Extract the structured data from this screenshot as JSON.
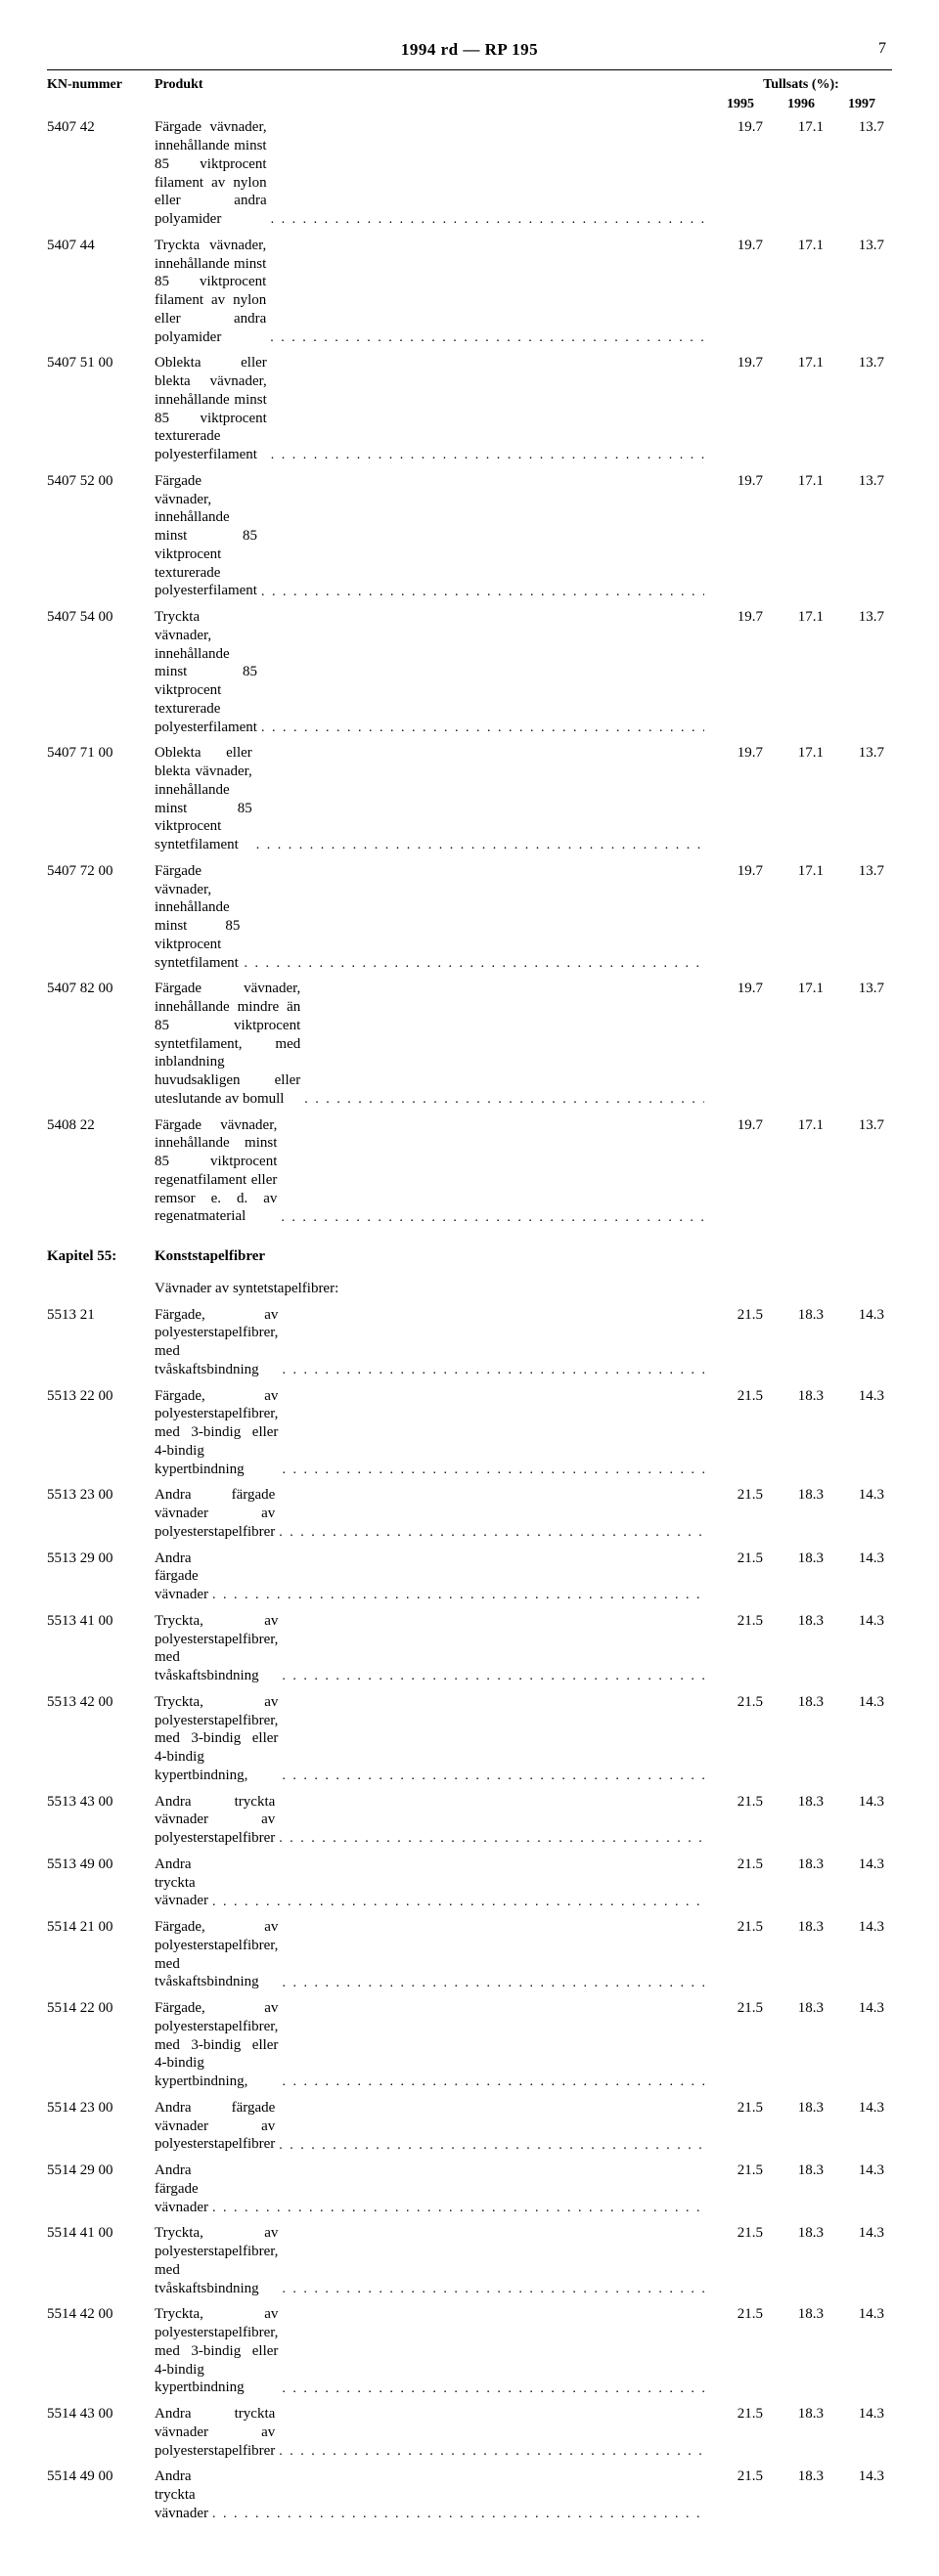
{
  "header_text": "1994 rd — RP 195",
  "page_number": "7",
  "columns": {
    "kn": "KN-nummer",
    "produkt": "Produkt",
    "tullsats": "Tullsats (%):",
    "y1995": "1995",
    "y1996": "1996",
    "y1997": "1997"
  },
  "rows": [
    {
      "kn": "5407 42",
      "produkt": "Färgade vävnader, innehållande minst 85 viktprocent filament av nylon eller andra polyamider",
      "y1995": "19.7",
      "y1996": "17.1",
      "y1997": "13.7"
    },
    {
      "kn": "5407 44",
      "produkt": "Tryckta vävnader, innehållande minst 85 viktprocent filament av nylon eller andra polyamider",
      "y1995": "19.7",
      "y1996": "17.1",
      "y1997": "13.7"
    },
    {
      "kn": "5407 51 00",
      "produkt": "Oblekta eller blekta vävnader, innehållande minst 85 viktprocent texturerade polyesterfilament",
      "y1995": "19.7",
      "y1996": "17.1",
      "y1997": "13.7"
    },
    {
      "kn": "5407 52 00",
      "produkt": "Färgade vävnader, innehållande minst 85 viktprocent texturerade polyesterfilament",
      "y1995": "19.7",
      "y1996": "17.1",
      "y1997": "13.7"
    },
    {
      "kn": "5407 54 00",
      "produkt": "Tryckta vävnader, innehållande minst 85 viktprocent texturerade polyesterfilament",
      "y1995": "19.7",
      "y1996": "17.1",
      "y1997": "13.7"
    },
    {
      "kn": "5407 71 00",
      "produkt": "Oblekta eller blekta vävnader, innehållande minst 85 viktprocent syntetfilament",
      "y1995": "19.7",
      "y1996": "17.1",
      "y1997": "13.7"
    },
    {
      "kn": "5407 72 00",
      "produkt": "Färgade vävnader, innehållande minst 85 viktprocent syntetfilament",
      "y1995": "19.7",
      "y1996": "17.1",
      "y1997": "13.7"
    },
    {
      "kn": "5407 82 00",
      "produkt": "Färgade vävnader, innehållande mindre än 85 viktprocent syntetfilament, med inblandning huvudsakligen eller uteslutande av bomull",
      "y1995": "19.7",
      "y1996": "17.1",
      "y1997": "13.7"
    },
    {
      "kn": "5408 22",
      "produkt": "Färgade vävnader, innehållande minst 85 viktprocent regenatfilament eller remsor e. d. av regenatmaterial",
      "y1995": "19.7",
      "y1996": "17.1",
      "y1997": "13.7"
    }
  ],
  "chapter": {
    "kn": "Kapitel 55:",
    "title": "Konststapelfibrer",
    "subtitle": "Vävnader av syntetstapelfibrer:"
  },
  "rows2": [
    {
      "kn": "5513 21",
      "produkt": "Färgade, av polyesterstapelfibrer, med tvåskaftsbindning",
      "y1995": "21.5",
      "y1996": "18.3",
      "y1997": "14.3"
    },
    {
      "kn": "5513 22 00",
      "produkt": "Färgade, av polyesterstapelfibrer, med 3-bindig eller 4-bindig kypertbindning",
      "y1995": "21.5",
      "y1996": "18.3",
      "y1997": "14.3"
    },
    {
      "kn": "5513 23 00",
      "produkt": "Andra färgade vävnader av polyesterstapelfibrer",
      "y1995": "21.5",
      "y1996": "18.3",
      "y1997": "14.3"
    },
    {
      "kn": "5513 29 00",
      "produkt": "Andra färgade vävnader",
      "y1995": "21.5",
      "y1996": "18.3",
      "y1997": "14.3"
    },
    {
      "kn": "5513 41 00",
      "produkt": "Tryckta, av polyesterstapelfibrer, med tvåskaftsbindning",
      "y1995": "21.5",
      "y1996": "18.3",
      "y1997": "14.3"
    },
    {
      "kn": "5513 42 00",
      "produkt": "Tryckta, av polyesterstapelfibrer, med 3-bindig eller 4-bindig kypertbindning,",
      "y1995": "21.5",
      "y1996": "18.3",
      "y1997": "14.3"
    },
    {
      "kn": "5513 43 00",
      "produkt": "Andra tryckta vävnader av polyesterstapelfibrer",
      "y1995": "21.5",
      "y1996": "18.3",
      "y1997": "14.3"
    },
    {
      "kn": "5513 49 00",
      "produkt": "Andra tryckta vävnader",
      "y1995": "21.5",
      "y1996": "18.3",
      "y1997": "14.3"
    },
    {
      "kn": "5514 21 00",
      "produkt": "Färgade, av polyesterstapelfibrer, med tvåskaftsbindning",
      "y1995": "21.5",
      "y1996": "18.3",
      "y1997": "14.3"
    },
    {
      "kn": "5514 22 00",
      "produkt": "Färgade, av polyesterstapelfibrer, med 3-bindig eller 4-bindig kypertbindning,",
      "y1995": "21.5",
      "y1996": "18.3",
      "y1997": "14.3"
    },
    {
      "kn": "5514 23 00",
      "produkt": "Andra färgade vävnader av polyesterstapelfibrer",
      "y1995": "21.5",
      "y1996": "18.3",
      "y1997": "14.3"
    },
    {
      "kn": "5514 29 00",
      "produkt": "Andra färgade vävnader",
      "y1995": "21.5",
      "y1996": "18.3",
      "y1997": "14.3"
    },
    {
      "kn": "5514 41 00",
      "produkt": "Tryckta, av polyesterstapelfibrer, med tvåskaftsbindning",
      "y1995": "21.5",
      "y1996": "18.3",
      "y1997": "14.3"
    },
    {
      "kn": "5514 42 00",
      "produkt": "Tryckta, av polyesterstapelfibrer, med 3-bindig eller 4-bindig kypertbindning",
      "y1995": "21.5",
      "y1996": "18.3",
      "y1997": "14.3"
    },
    {
      "kn": "5514 43 00",
      "produkt": "Andra tryckta vävnader av polyesterstapelfibrer",
      "y1995": "21.5",
      "y1996": "18.3",
      "y1997": "14.3"
    },
    {
      "kn": "5514 49 00",
      "produkt": "Andra tryckta vävnader",
      "y1995": "21.5",
      "y1996": "18.3",
      "y1997": "14.3"
    }
  ]
}
